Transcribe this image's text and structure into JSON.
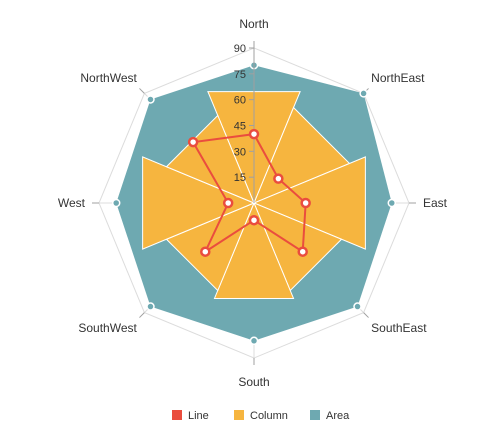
{
  "chart_data": {
    "type": "radar",
    "categories": [
      "North",
      "NorthEast",
      "East",
      "SouthEast",
      "South",
      "SouthWest",
      "West",
      "NorthWest"
    ],
    "radial_ticks": [
      "15",
      "30",
      "45",
      "60",
      "75",
      "90"
    ],
    "rlim": [
      0,
      90
    ],
    "grid": true,
    "legend_position": "bottom",
    "series": [
      {
        "name": "Area",
        "type": "area",
        "color": "#6ea9b1",
        "marker_color": "#6ea9b1",
        "values": [
          80,
          90,
          80,
          85,
          80,
          85,
          80,
          85
        ]
      },
      {
        "name": "Column",
        "type": "column",
        "color": "#f6b53f",
        "values": [
          70,
          60,
          70,
          55,
          60,
          55,
          70,
          55
        ]
      },
      {
        "name": "Line",
        "type": "line",
        "color": "#ea4d3e",
        "values": [
          40,
          20,
          30,
          40,
          10,
          40,
          15,
          50
        ]
      }
    ]
  }
}
